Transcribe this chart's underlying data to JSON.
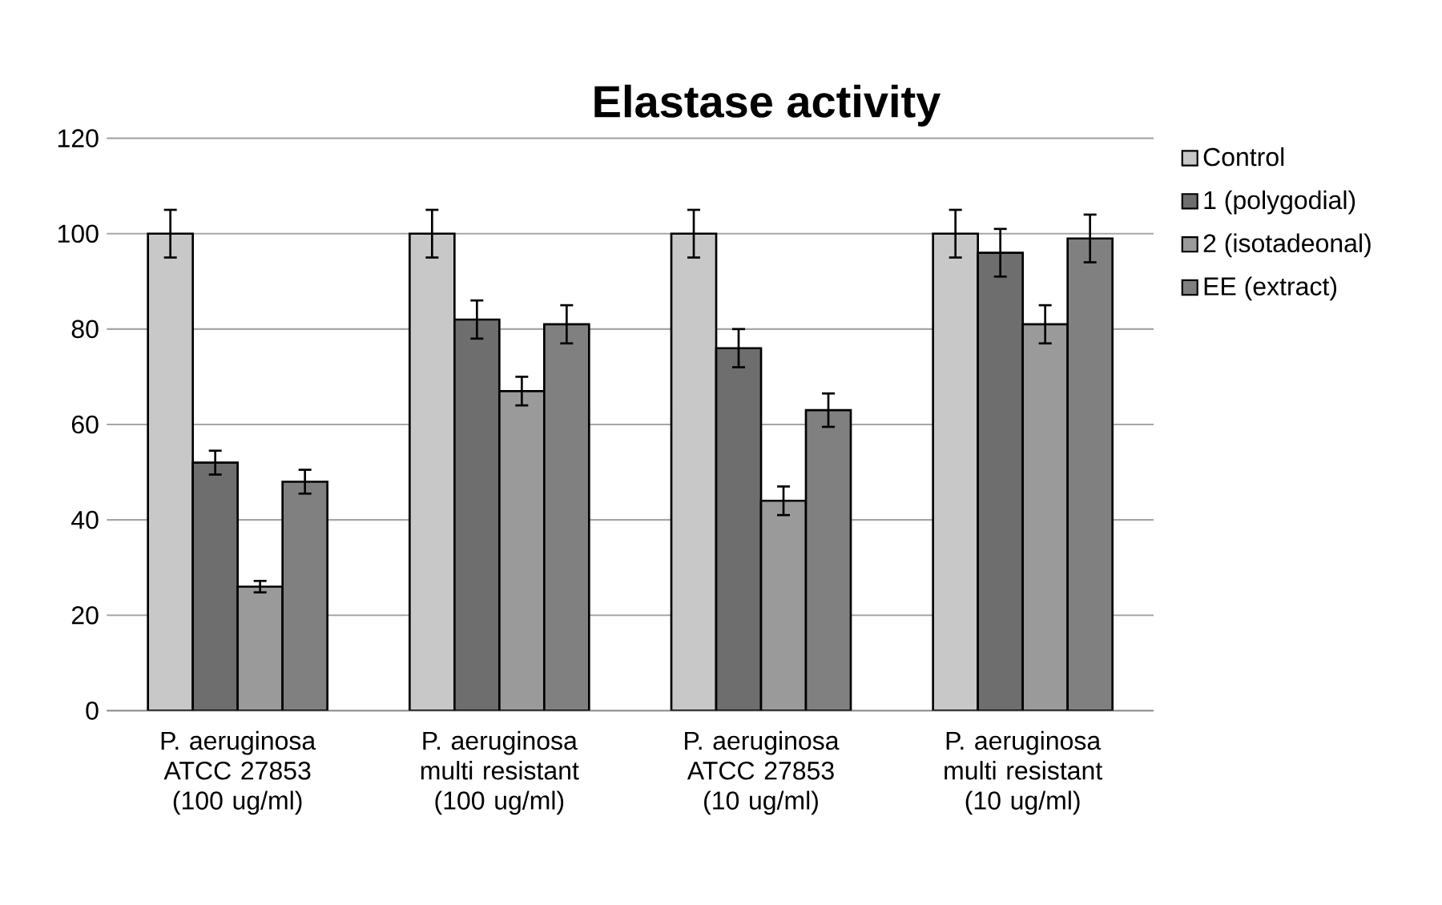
{
  "chart_data": {
    "type": "bar",
    "title": "Elastase activity",
    "categories": [
      "P. aeruginosa ATCC 27853 (100 ug/ml)",
      "P. aeruginosa multi resistant (100 ug/ml)",
      "P. aeruginosa ATCC 27853 (10 ug/ml)",
      "P. aeruginosa multi resistant (10 ug/ml)"
    ],
    "series": [
      {
        "name": "Control",
        "color": "#c8c8c8",
        "values": [
          100,
          100,
          100,
          100
        ],
        "errors": [
          5,
          5,
          5,
          5
        ]
      },
      {
        "name": "1 (polygodial)",
        "color": "#6e6e6e",
        "values": [
          52,
          82,
          76,
          96
        ],
        "errors": [
          2.5,
          4,
          4,
          5
        ]
      },
      {
        "name": "2 (isotadeonal)",
        "color": "#9a9a9a",
        "values": [
          26,
          67,
          44,
          81
        ],
        "errors": [
          1.2,
          3,
          3,
          4
        ]
      },
      {
        "name": "EE (extract)",
        "color": "#808080",
        "values": [
          48,
          81,
          63,
          99
        ],
        "errors": [
          2.5,
          4,
          3.5,
          5
        ]
      }
    ],
    "ylim": [
      0,
      120
    ],
    "yticks": [
      0,
      20,
      40,
      60,
      80,
      100,
      120
    ],
    "grid": "y",
    "legend": "right"
  }
}
